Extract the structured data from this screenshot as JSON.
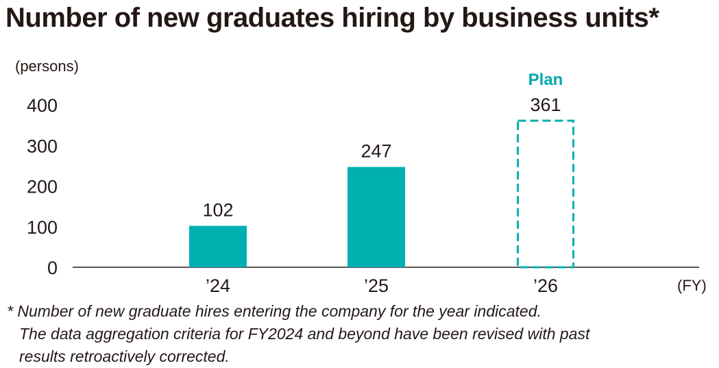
{
  "title": "Number of new graduates hiring by business units*",
  "unit_label": "(persons)",
  "fy_label": "(FY)",
  "plan_label": "Plan",
  "notes": [
    "* Number of new graduate hires entering the company for the year indicated.",
    "The data aggregation criteria for FY2024 and beyond have been revised with past",
    "results retroactively corrected."
  ],
  "colors": {
    "bar": "#00b0b0",
    "plan_label": "#00a9ad",
    "axis": "#231815",
    "text": "#231815"
  },
  "chart_data": {
    "type": "bar",
    "title": "Number of new graduates hiring by business units*",
    "xlabel": "(FY)",
    "ylabel": "(persons)",
    "ylim": [
      0,
      400
    ],
    "yticks": [
      0,
      100,
      200,
      300,
      400
    ],
    "grid": false,
    "categories": [
      "’24",
      "’25",
      "’26"
    ],
    "values": [
      102,
      247,
      361
    ],
    "data_labels": [
      "102",
      "247",
      "361"
    ],
    "plan": [
      false,
      false,
      true
    ]
  }
}
